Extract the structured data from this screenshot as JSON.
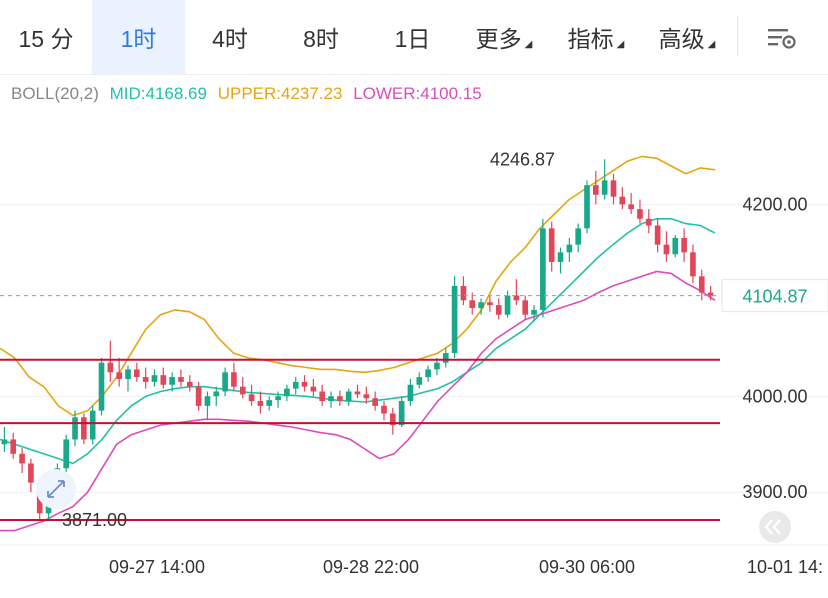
{
  "tabs": [
    {
      "label": "15 分",
      "active": false,
      "dropdown": false
    },
    {
      "label": "1时",
      "active": true,
      "dropdown": false
    },
    {
      "label": "4时",
      "active": false,
      "dropdown": false
    },
    {
      "label": "8时",
      "active": false,
      "dropdown": false
    },
    {
      "label": "1日",
      "active": false,
      "dropdown": false
    },
    {
      "label": "更多",
      "active": false,
      "dropdown": true
    },
    {
      "label": "指标",
      "active": false,
      "dropdown": true
    },
    {
      "label": "高级",
      "active": false,
      "dropdown": true
    }
  ],
  "settings_icon": "chart-settings-icon",
  "legend": {
    "name": "BOLL(20,2)",
    "mid": "MID:4168.69",
    "upper": "UPPER:4237.23",
    "lower": "LOWER:4100.15"
  },
  "colors": {
    "accent": "#2f7be5",
    "up": "#1aa88a",
    "down": "#e0475a",
    "mid": "#20c2a6",
    "upper": "#e6a512",
    "lower": "#d94dbd",
    "support_line": "#c8102e",
    "boll_label": "#888888"
  },
  "chart_data": {
    "type": "candlestick",
    "indicator": "BOLL(20,2)",
    "y_ticks": [
      3900,
      4000,
      4200
    ],
    "y_tick_labels": [
      "3900.00",
      "4000.00",
      "4200.00"
    ],
    "ylim": [
      3845,
      4290
    ],
    "current_price": 4104.87,
    "current_price_label": "4104.87",
    "high_marker": {
      "value": 4246.87,
      "label": "4246.87"
    },
    "low_marker": {
      "value": 3871.0,
      "label": "3871.00"
    },
    "x_tick_labels": [
      "09-27 14:00",
      "09-28 22:00",
      "09-30 06:00",
      "10-01 14:"
    ],
    "horizontal_lines": [
      4038,
      3972,
      3871
    ],
    "candles": [
      [
        3950,
        3968,
        3942,
        3955
      ],
      [
        3955,
        3962,
        3935,
        3940
      ],
      [
        3940,
        3946,
        3920,
        3930
      ],
      [
        3930,
        3935,
        3900,
        3910
      ],
      [
        3910,
        3915,
        3872,
        3878
      ],
      [
        3878,
        3905,
        3871,
        3900
      ],
      [
        3900,
        3930,
        3895,
        3925
      ],
      [
        3925,
        3960,
        3918,
        3955
      ],
      [
        3955,
        3985,
        3948,
        3978
      ],
      [
        3978,
        3982,
        3950,
        3955
      ],
      [
        3955,
        3990,
        3950,
        3985
      ],
      [
        3985,
        4040,
        3980,
        4035
      ],
      [
        4035,
        4058,
        4015,
        4025
      ],
      [
        4025,
        4040,
        4010,
        4018
      ],
      [
        4018,
        4032,
        4005,
        4028
      ],
      [
        4028,
        4035,
        4015,
        4020
      ],
      [
        4020,
        4030,
        4008,
        4015
      ],
      [
        4015,
        4028,
        4010,
        4022
      ],
      [
        4022,
        4030,
        4008,
        4012
      ],
      [
        4012,
        4025,
        4005,
        4020
      ],
      [
        4020,
        4028,
        4010,
        4015
      ],
      [
        4015,
        4022,
        4005,
        4010
      ],
      [
        4010,
        4015,
        3985,
        3990
      ],
      [
        3990,
        4005,
        3975,
        4000
      ],
      [
        4000,
        4010,
        3990,
        4005
      ],
      [
        4005,
        4030,
        4000,
        4025
      ],
      [
        4025,
        4035,
        4005,
        4010
      ],
      [
        4010,
        4020,
        3998,
        4002
      ],
      [
        4002,
        4012,
        3990,
        3995
      ],
      [
        3995,
        4005,
        3982,
        3990
      ],
      [
        3990,
        4000,
        3985,
        3996
      ],
      [
        3996,
        4005,
        3988,
        4000
      ],
      [
        4000,
        4012,
        3995,
        4008
      ],
      [
        4008,
        4020,
        4002,
        4015
      ],
      [
        4015,
        4022,
        4005,
        4010
      ],
      [
        4010,
        4018,
        4000,
        4005
      ],
      [
        4005,
        4012,
        3990,
        3995
      ],
      [
        3995,
        4005,
        3988,
        4000
      ],
      [
        4000,
        4006,
        3990,
        3995
      ],
      [
        3995,
        4008,
        3990,
        4005
      ],
      [
        4005,
        4012,
        3998,
        4002
      ],
      [
        4002,
        4010,
        3992,
        3998
      ],
      [
        3998,
        4005,
        3985,
        3990
      ],
      [
        3990,
        3995,
        3975,
        3982
      ],
      [
        3982,
        3988,
        3960,
        3970
      ],
      [
        3970,
        4000,
        3968,
        3995
      ],
      [
        3995,
        4018,
        3990,
        4012
      ],
      [
        4012,
        4025,
        4008,
        4020
      ],
      [
        4020,
        4032,
        4015,
        4028
      ],
      [
        4028,
        4040,
        4022,
        4035
      ],
      [
        4035,
        4050,
        4030,
        4045
      ],
      [
        4045,
        4125,
        4040,
        4115
      ],
      [
        4115,
        4125,
        4095,
        4100
      ],
      [
        4100,
        4108,
        4085,
        4092
      ],
      [
        4092,
        4102,
        4085,
        4098
      ],
      [
        4098,
        4105,
        4088,
        4095
      ],
      [
        4095,
        4102,
        4080,
        4085
      ],
      [
        4085,
        4110,
        4082,
        4105
      ],
      [
        4105,
        4122,
        4095,
        4100
      ],
      [
        4100,
        4105,
        4080,
        4085
      ],
      [
        4085,
        4095,
        4078,
        4090
      ],
      [
        4090,
        4185,
        4082,
        4175
      ],
      [
        4175,
        4182,
        4130,
        4140
      ],
      [
        4140,
        4155,
        4128,
        4150
      ],
      [
        4150,
        4165,
        4140,
        4158
      ],
      [
        4158,
        4180,
        4150,
        4175
      ],
      [
        4175,
        4225,
        4170,
        4220
      ],
      [
        4220,
        4235,
        4200,
        4210
      ],
      [
        4210,
        4247,
        4205,
        4225
      ],
      [
        4225,
        4232,
        4200,
        4208
      ],
      [
        4208,
        4218,
        4195,
        4200
      ],
      [
        4200,
        4212,
        4190,
        4195
      ],
      [
        4195,
        4205,
        4180,
        4185
      ],
      [
        4185,
        4195,
        4170,
        4178
      ],
      [
        4178,
        4185,
        4150,
        4158
      ],
      [
        4158,
        4172,
        4140,
        4148
      ],
      [
        4148,
        4168,
        4145,
        4165
      ],
      [
        4165,
        4175,
        4140,
        4150
      ],
      [
        4150,
        4158,
        4118,
        4125
      ],
      [
        4125,
        4132,
        4100,
        4108
      ],
      [
        4108,
        4115,
        4100,
        4105
      ]
    ],
    "upper_band": [
      4050,
      4040,
      4020,
      4010,
      3990,
      3980,
      3985,
      4000,
      4020,
      4045,
      4070,
      4085,
      4090,
      4088,
      4080,
      4060,
      4045,
      4040,
      4038,
      4035,
      4032,
      4030,
      4028,
      4028,
      4026,
      4025,
      4027,
      4030,
      4035,
      4040,
      4045,
      4055,
      4070,
      4090,
      4120,
      4140,
      4155,
      4175,
      4190,
      4205,
      4215,
      4225,
      4235,
      4245,
      4250,
      4248,
      4240,
      4232,
      4238,
      4236
    ],
    "mid_band": [
      3955,
      3950,
      3945,
      3940,
      3935,
      3930,
      3940,
      3955,
      3975,
      3990,
      4000,
      4005,
      4008,
      4010,
      4010,
      4008,
      4006,
      4004,
      4003,
      4002,
      4001,
      4000,
      3998,
      3996,
      3995,
      3994,
      3996,
      3998,
      4000,
      4004,
      4008,
      4015,
      4025,
      4035,
      4050,
      4060,
      4070,
      4085,
      4100,
      4115,
      4130,
      4145,
      4158,
      4170,
      4180,
      4185,
      4185,
      4180,
      4178,
      4170
    ],
    "lower_band": [
      3860,
      3860,
      3865,
      3870,
      3878,
      3885,
      3900,
      3925,
      3950,
      3960,
      3965,
      3970,
      3972,
      3974,
      3976,
      3976,
      3975,
      3974,
      3972,
      3970,
      3968,
      3965,
      3962,
      3960,
      3955,
      3945,
      3935,
      3940,
      3955,
      3975,
      3995,
      4010,
      4025,
      4045,
      4060,
      4070,
      4080,
      4085,
      4090,
      4095,
      4100,
      4108,
      4115,
      4120,
      4125,
      4130,
      4128,
      4118,
      4110,
      4100
    ]
  }
}
